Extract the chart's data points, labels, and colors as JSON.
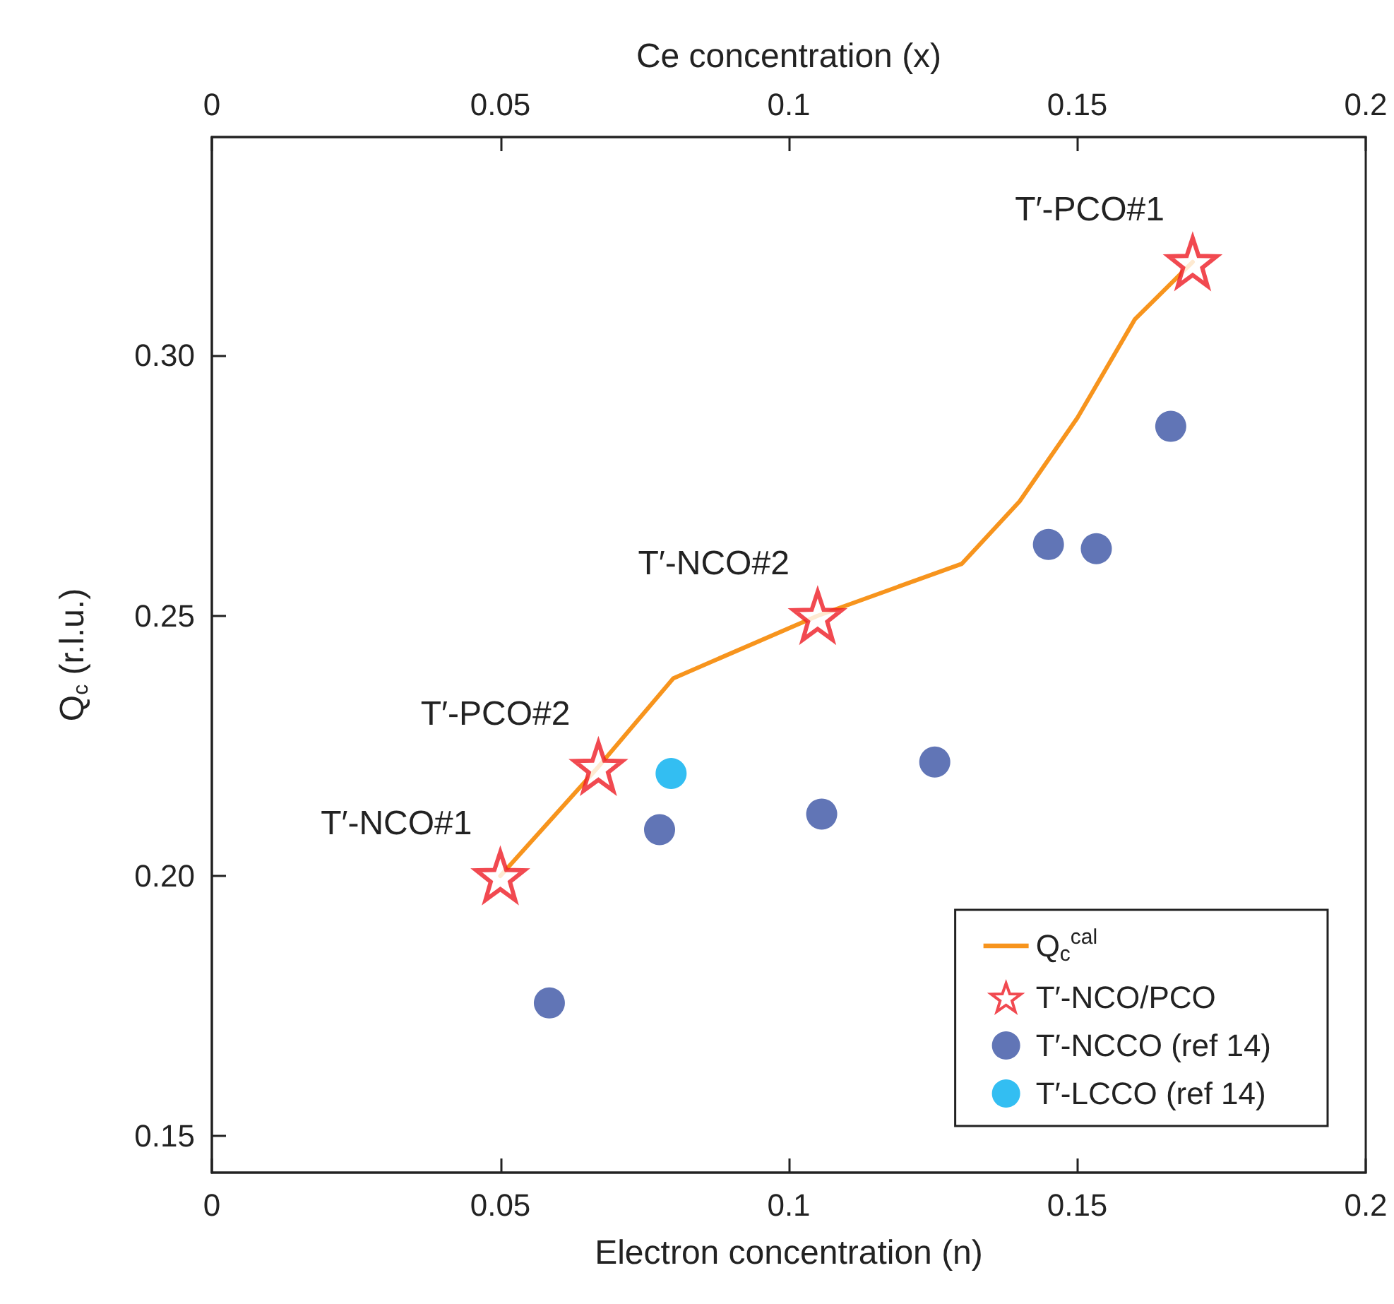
{
  "chart_data": {
    "type": "scatter",
    "xlabel": "Electron concentration (n)",
    "x2label": "Ce concentration (x)",
    "ylabel": "Q$_{c}$ (r.l.u.)",
    "xlim": [
      0,
      0.2
    ],
    "xticks": [
      0,
      0.05,
      0.1,
      0.15,
      0.2
    ],
    "x2lim": [
      0,
      0.2
    ],
    "x2ticks": [
      0,
      0.05,
      0.1,
      0.15,
      0.2
    ],
    "ylim": [
      0.143,
      0.342
    ],
    "yticks": [
      {
        "value": 0.15,
        "label": "0.15"
      },
      {
        "value": 0.2,
        "label": "0.20"
      },
      {
        "value": 0.25,
        "label": "0.25"
      },
      {
        "value": 0.3,
        "label": "0.30"
      }
    ],
    "grid": false,
    "legend": "bottom right",
    "series": [
      {
        "name": "Q$_{c}$$^{cal}$",
        "type": "line",
        "color": "#f7941d",
        "marker": "none",
        "line_style": "solid",
        "x": [
          0.05,
          0.067,
          0.08,
          0.105,
          0.13,
          0.14,
          0.15,
          0.16,
          0.17
        ],
        "values": [
          0.2,
          0.221,
          0.238,
          0.25,
          0.26,
          0.272,
          0.288,
          0.307,
          0.318
        ]
      },
      {
        "name": "T′-NCO/PCO",
        "color": "#ed1c24",
        "marker": "star",
        "x": [
          0.05,
          0.067,
          0.105,
          0.17
        ],
        "values": [
          0.2,
          0.221,
          0.25,
          0.318
        ]
      },
      {
        "name": "T′-NCCO (ref 14)",
        "color": "#3a53a4",
        "marker": "circle",
        "x": [
          0.0585,
          0.0776,
          0.1057,
          0.1253,
          0.145,
          0.1533,
          0.1662
        ],
        "values": [
          0.1756,
          0.2089,
          0.2119,
          0.2219,
          0.2637,
          0.2629,
          0.2864
        ]
      },
      {
        "name": "T′-LCCO (ref 14)",
        "color": "#00aeef",
        "marker": "circle",
        "x": [
          0.0796
        ],
        "values": [
          0.2197
        ]
      }
    ],
    "annotations": [
      {
        "text": "T′-NCO#1",
        "x": 0.05,
        "y": 0.2
      },
      {
        "text": "T′-PCO#2",
        "x": 0.067,
        "y": 0.221
      },
      {
        "text": "T′-NCO#2",
        "x": 0.105,
        "y": 0.25
      },
      {
        "text": "T′-PCO#1",
        "x": 0.17,
        "y": 0.318
      }
    ]
  }
}
